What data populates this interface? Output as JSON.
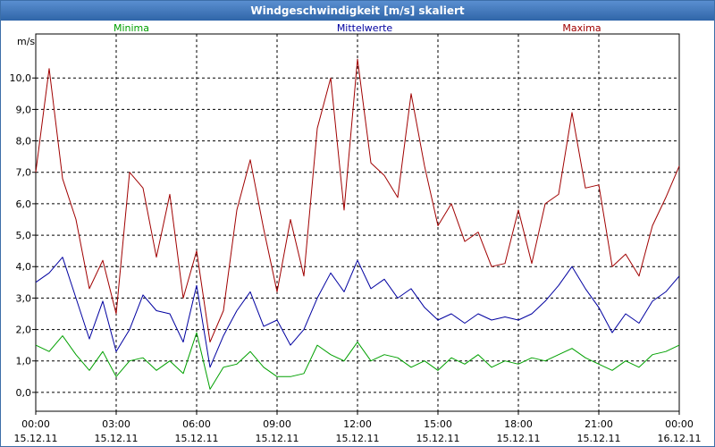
{
  "chart_data": {
    "type": "line",
    "title": "Windgeschwindigkeit [m/s] skaliert",
    "ylabel": "m/s",
    "xlabel": "",
    "ylim": [
      -0.6,
      11.4
    ],
    "xlim": [
      0,
      24
    ],
    "grid": true,
    "legend_position": "top",
    "yticks": [
      {
        "v": 0,
        "label": "0,0"
      },
      {
        "v": 1,
        "label": "1,0"
      },
      {
        "v": 2,
        "label": "2,0"
      },
      {
        "v": 3,
        "label": "3,0"
      },
      {
        "v": 4,
        "label": "4,0"
      },
      {
        "v": 5,
        "label": "5,0"
      },
      {
        "v": 6,
        "label": "6,0"
      },
      {
        "v": 7,
        "label": "7,0"
      },
      {
        "v": 8,
        "label": "8,0"
      },
      {
        "v": 9,
        "label": "9,0"
      },
      {
        "v": 10,
        "label": "10,0"
      }
    ],
    "xticks": [
      {
        "h": 0,
        "time": "00:00",
        "date": "15.12.11"
      },
      {
        "h": 3,
        "time": "03:00",
        "date": "15.12.11"
      },
      {
        "h": 6,
        "time": "06:00",
        "date": "15.12.11"
      },
      {
        "h": 9,
        "time": "09:00",
        "date": "15.12.11"
      },
      {
        "h": 12,
        "time": "12:00",
        "date": "15.12.11"
      },
      {
        "h": 15,
        "time": "15:00",
        "date": "15.12.11"
      },
      {
        "h": 18,
        "time": "18:00",
        "date": "15.12.11"
      },
      {
        "h": 21,
        "time": "21:00",
        "date": "15.12.11"
      },
      {
        "h": 24,
        "time": "00:00",
        "date": "16.12.11"
      }
    ],
    "x": [
      0,
      0.5,
      1,
      1.5,
      2,
      2.5,
      3,
      3.5,
      4,
      4.5,
      5,
      5.5,
      6,
      6.5,
      7,
      7.5,
      8,
      8.5,
      9,
      9.5,
      10,
      10.5,
      11,
      11.5,
      12,
      12.5,
      13,
      13.5,
      14,
      14.5,
      15,
      15.5,
      16,
      16.5,
      17,
      17.5,
      18,
      18.5,
      19,
      19.5,
      20,
      20.5,
      21,
      21.5,
      22,
      22.5,
      23,
      23.5,
      24
    ],
    "series": [
      {
        "name": "Minima",
        "color": "#00a000",
        "values": [
          1.5,
          1.3,
          1.8,
          1.2,
          0.7,
          1.3,
          0.5,
          1.0,
          1.1,
          0.7,
          1.0,
          0.6,
          1.9,
          0.1,
          0.8,
          0.9,
          1.3,
          0.8,
          0.5,
          0.5,
          0.6,
          1.5,
          1.2,
          1.0,
          1.6,
          1.0,
          1.2,
          1.1,
          0.8,
          1.0,
          0.7,
          1.1,
          0.9,
          1.2,
          0.8,
          1.0,
          0.9,
          1.1,
          1.0,
          1.2,
          1.4,
          1.1,
          0.9,
          0.7,
          1.0,
          0.8,
          1.2,
          1.3,
          1.5
        ]
      },
      {
        "name": "Mittelwerte",
        "color": "#0000a0",
        "values": [
          3.5,
          3.8,
          4.3,
          3.0,
          1.7,
          2.9,
          1.3,
          2.0,
          3.1,
          2.6,
          2.5,
          1.6,
          3.4,
          0.8,
          1.8,
          2.6,
          3.2,
          2.1,
          2.3,
          1.5,
          2.0,
          3.0,
          3.8,
          3.2,
          4.2,
          3.3,
          3.6,
          3.0,
          3.3,
          2.7,
          2.3,
          2.5,
          2.2,
          2.5,
          2.3,
          2.4,
          2.3,
          2.5,
          2.9,
          3.4,
          4.0,
          3.3,
          2.7,
          1.9,
          2.5,
          2.2,
          2.9,
          3.2,
          3.7
        ]
      },
      {
        "name": "Maxima",
        "color": "#a00000",
        "values": [
          7.0,
          10.3,
          6.8,
          5.5,
          3.3,
          4.2,
          2.5,
          7.0,
          6.5,
          4.3,
          6.3,
          3.0,
          4.5,
          1.6,
          2.6,
          5.8,
          7.4,
          5.2,
          3.2,
          5.5,
          3.7,
          8.4,
          10.0,
          5.8,
          10.6,
          7.3,
          6.9,
          6.2,
          9.5,
          7.2,
          5.3,
          6.0,
          4.8,
          5.1,
          4.0,
          4.1,
          5.8,
          4.1,
          6.0,
          6.3,
          8.9,
          6.5,
          6.6,
          4.0,
          4.4,
          3.7,
          5.3,
          6.2,
          7.2
        ]
      }
    ]
  }
}
